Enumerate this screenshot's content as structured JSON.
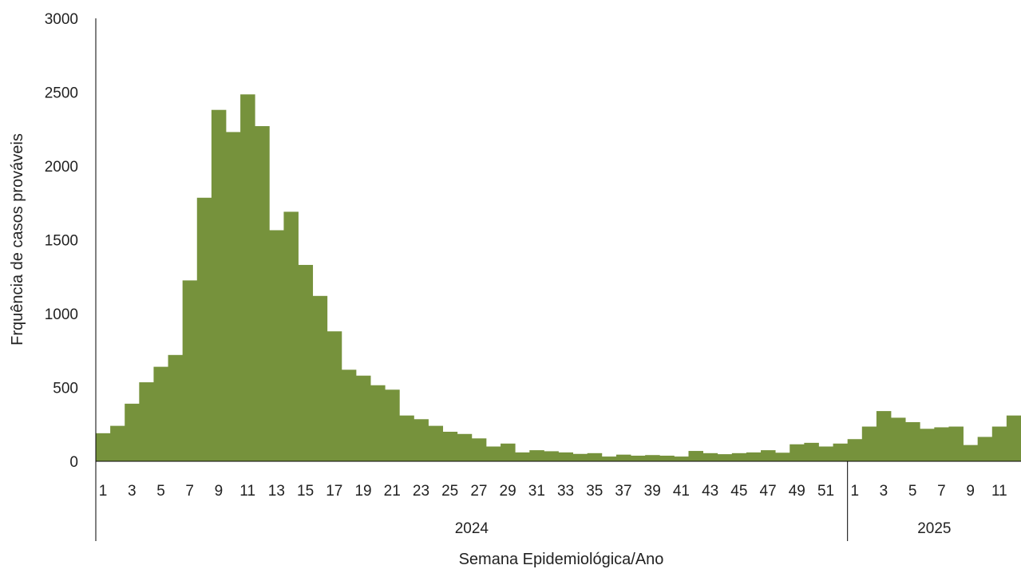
{
  "chart_data": {
    "type": "bar",
    "title": "",
    "xlabel": "Semana Epidemiológica/Ano",
    "ylabel": "Frquência de casos prováveis",
    "ylim": [
      0,
      3000
    ],
    "yticks": [
      0,
      500,
      1000,
      1500,
      2000,
      2500,
      3000
    ],
    "grid": false,
    "legend": "none",
    "bar_color": "#76923c",
    "groups": [
      {
        "label": "2024",
        "categories": [
          "1",
          "2",
          "3",
          "4",
          "5",
          "6",
          "7",
          "8",
          "9",
          "10",
          "11",
          "12",
          "13",
          "14",
          "15",
          "16",
          "17",
          "18",
          "19",
          "20",
          "21",
          "22",
          "23",
          "24",
          "25",
          "26",
          "27",
          "28",
          "29",
          "30",
          "31",
          "32",
          "33",
          "34",
          "35",
          "36",
          "37",
          "38",
          "39",
          "40",
          "41",
          "42",
          "43",
          "44",
          "45",
          "46",
          "47",
          "48",
          "49",
          "50",
          "51",
          "52"
        ],
        "tick_labels": [
          "1",
          "",
          "3",
          "",
          "5",
          "",
          "7",
          "",
          "9",
          "",
          "11",
          "",
          "13",
          "",
          "15",
          "",
          "17",
          "",
          "19",
          "",
          "21",
          "",
          "23",
          "",
          "25",
          "",
          "27",
          "",
          "29",
          "",
          "31",
          "",
          "33",
          "",
          "35",
          "",
          "37",
          "",
          "39",
          "",
          "41",
          "",
          "43",
          "",
          "45",
          "",
          "47",
          "",
          "49",
          "",
          "51",
          ""
        ],
        "values": [
          190,
          240,
          390,
          535,
          640,
          720,
          1225,
          1785,
          2380,
          2230,
          2485,
          2270,
          1565,
          1690,
          1330,
          1120,
          880,
          620,
          580,
          515,
          485,
          310,
          285,
          240,
          200,
          185,
          155,
          100,
          120,
          60,
          75,
          68,
          60,
          50,
          55,
          32,
          45,
          38,
          42,
          38,
          32,
          70,
          55,
          48,
          55,
          60,
          75,
          58,
          115,
          125,
          100,
          120
        ]
      },
      {
        "label": "2025",
        "categories": [
          "1",
          "2",
          "3",
          "4",
          "5",
          "6",
          "7",
          "8",
          "9",
          "10",
          "11",
          "12"
        ],
        "tick_labels": [
          "1",
          "",
          "3",
          "",
          "5",
          "",
          "7",
          "",
          "9",
          "",
          "11",
          ""
        ],
        "values": [
          150,
          235,
          340,
          295,
          265,
          220,
          230,
          235,
          110,
          165,
          235,
          310
        ]
      }
    ]
  }
}
